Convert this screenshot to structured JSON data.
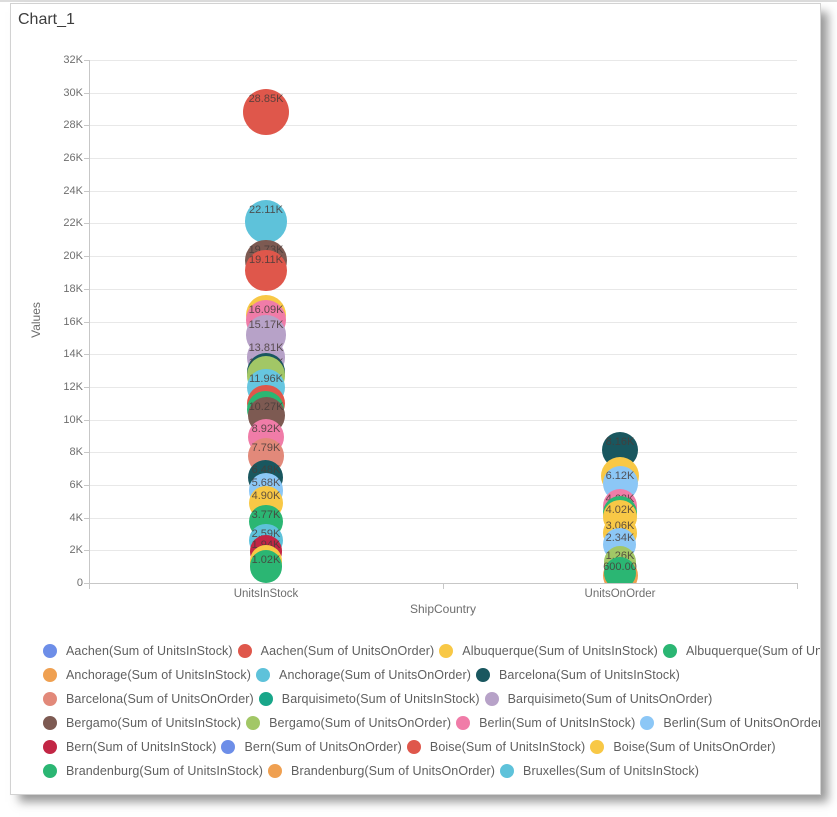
{
  "window": {
    "title": "Chart_1"
  },
  "y_axis": {
    "title": "Values",
    "ticks": [
      "0",
      "2K",
      "4K",
      "6K",
      "8K",
      "10K",
      "12K",
      "14K",
      "16K",
      "18K",
      "20K",
      "22K",
      "24K",
      "26K",
      "28K",
      "30K",
      "32K"
    ]
  },
  "x_axis": {
    "title": "ShipCountry",
    "categories": [
      "UnitsInStock",
      "UnitsOnOrder"
    ]
  },
  "chart_data": {
    "type": "bubble",
    "title": "Chart_1",
    "xlabel": "ShipCountry",
    "ylabel": "Values",
    "ylim": [
      0,
      32000
    ],
    "grid": true,
    "legend_position": "bottom",
    "categories": [
      "UnitsInStock",
      "UnitsOnOrder"
    ],
    "series_note": "stacked bubbles per category, labels as shown",
    "points": {
      "UnitsInStock": [
        28850,
        22110,
        19730,
        19110,
        16090,
        15170,
        13810,
        12880,
        11960,
        10270,
        8920,
        7790,
        6480,
        5680,
        4900,
        3770,
        2590,
        1940,
        1020
      ],
      "UnitsOnOrder": [
        8160,
        6120,
        4680,
        4020,
        3060,
        2340,
        1260,
        600
      ]
    }
  },
  "bubbles": {
    "UnitsInStock": [
      {
        "v": 28850,
        "label": "28.85K",
        "color": "#DF574B"
      },
      {
        "v": 22110,
        "label": "22.11K",
        "color": "#5EC2DA"
      },
      {
        "v": 19730,
        "label": "19.73K",
        "color": "#7D5A52"
      },
      {
        "v": 19110,
        "label": "19.11K",
        "color": "#DF574B"
      },
      {
        "v": 16400,
        "label": "",
        "color": "#F8C846"
      },
      {
        "v": 16090,
        "label": "16.09K",
        "color": "#F07CA8"
      },
      {
        "v": 15170,
        "label": "15.17K",
        "color": "#B7A2C8"
      },
      {
        "v": 13810,
        "label": "13.81K",
        "color": "#B7A2C8"
      },
      {
        "v": 12880,
        "label": "12.88K",
        "color": "#19575F"
      },
      {
        "v": 12700,
        "label": "",
        "color": "#A2C766"
      },
      {
        "v": 11960,
        "label": "11.96K",
        "color": "#66C6E0"
      },
      {
        "v": 11000,
        "label": "",
        "color": "#DF574B"
      },
      {
        "v": 10600,
        "label": "",
        "color": "#2BB673"
      },
      {
        "v": 10270,
        "label": "10.27K",
        "color": "#7D5A52"
      },
      {
        "v": 8920,
        "label": "8.92K",
        "color": "#F07CA8"
      },
      {
        "v": 7790,
        "label": "7.79K",
        "color": "#E2897A"
      },
      {
        "v": 6480,
        "label": "6.48K",
        "color": "#19575F"
      },
      {
        "v": 5680,
        "label": "5.68K",
        "color": "#8CC7F6"
      },
      {
        "v": 4900,
        "label": "4.90K",
        "color": "#F8C846"
      },
      {
        "v": 3770,
        "label": "3.77K",
        "color": "#2BB673"
      },
      {
        "v": 2590,
        "label": "2.59K",
        "color": "#5EC2DA"
      },
      {
        "v": 1940,
        "label": "1.94K",
        "color": "#C22645"
      },
      {
        "v": 1300,
        "label": "",
        "color": "#F8C846"
      },
      {
        "v": 1020,
        "label": "1.02K",
        "color": "#2BB673"
      }
    ],
    "UnitsOnOrder": [
      {
        "v": 8160,
        "label": "8.16K",
        "color": "#19575F"
      },
      {
        "v": 6550,
        "label": "",
        "color": "#F8C846",
        "r": 19
      },
      {
        "v": 6120,
        "label": "6.12K",
        "color": "#8CC7F6"
      },
      {
        "v": 4680,
        "label": "4.68K",
        "color": "#F07CA8"
      },
      {
        "v": 4300,
        "label": "",
        "color": "#2BB673"
      },
      {
        "v": 4020,
        "label": "4.02K",
        "color": "#F8C846"
      },
      {
        "v": 3060,
        "label": "3.06K",
        "color": "#F8C846"
      },
      {
        "v": 2340,
        "label": "2.34K",
        "color": "#8CC7F6"
      },
      {
        "v": 1260,
        "label": "1.26K",
        "color": "#A2C766"
      },
      {
        "v": 450,
        "label": "",
        "color": "#EFA051",
        "r": 17.5
      },
      {
        "v": 600,
        "label": "600.00",
        "color": "#2BB673"
      }
    ]
  },
  "legend": {
    "rows": [
      [
        {
          "color": "#6D8EE8",
          "label": "Aachen(Sum of UnitsInStock)"
        },
        {
          "color": "#DF574B",
          "label": "Aachen(Sum of UnitsOnOrder)"
        },
        {
          "color": "#F8C846",
          "label": "Albuquerque(Sum of UnitsInStock)"
        },
        {
          "color": "#2BB673",
          "label": "Albuquerque(Sum of UnitsOnOrder)"
        }
      ],
      [
        {
          "color": "#EFA051",
          "label": "Anchorage(Sum of UnitsInStock)"
        },
        {
          "color": "#5EC2DA",
          "label": "Anchorage(Sum of UnitsOnOrder)"
        },
        {
          "color": "#19575F",
          "label": "Barcelona(Sum of UnitsInStock)"
        }
      ],
      [
        {
          "color": "#E2897A",
          "label": "Barcelona(Sum of UnitsOnOrder)"
        },
        {
          "color": "#18A689",
          "label": "Barquisimeto(Sum of UnitsInStock)"
        },
        {
          "color": "#B7A2C8",
          "label": "Barquisimeto(Sum of UnitsOnOrder)"
        }
      ],
      [
        {
          "color": "#7D5A52",
          "label": "Bergamo(Sum of UnitsInStock)"
        },
        {
          "color": "#A2C766",
          "label": "Bergamo(Sum of UnitsOnOrder)"
        },
        {
          "color": "#F07CA8",
          "label": "Berlin(Sum of UnitsInStock)"
        },
        {
          "color": "#8CC7F6",
          "label": "Berlin(Sum of UnitsOnOrder)"
        }
      ],
      [
        {
          "color": "#C22645",
          "label": "Bern(Sum of UnitsInStock)"
        },
        {
          "color": "#6D8EE8",
          "label": "Bern(Sum of UnitsOnOrder)"
        },
        {
          "color": "#DF574B",
          "label": "Boise(Sum of UnitsInStock)"
        },
        {
          "color": "#F8C846",
          "label": "Boise(Sum of UnitsOnOrder)"
        }
      ],
      [
        {
          "color": "#2BB673",
          "label": "Brandenburg(Sum of UnitsInStock)"
        },
        {
          "color": "#EFA051",
          "label": "Brandenburg(Sum of UnitsOnOrder)"
        },
        {
          "color": "#5EC2DA",
          "label": "Bruxelles(Sum of UnitsInStock)"
        }
      ]
    ]
  }
}
